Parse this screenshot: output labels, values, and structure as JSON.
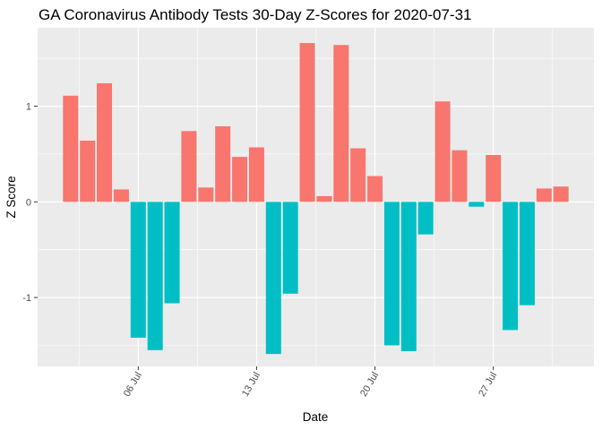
{
  "chart_data": {
    "type": "bar",
    "title": "GA Coronavirus Antibody Tests 30-Day Z-Scores for 2020-07-31",
    "xlabel": "Date",
    "ylabel": "Z Score",
    "ylim": [
      -1.72,
      1.82
    ],
    "x_tick_labels": [
      "06 Jul",
      "13 Jul",
      "20 Jul",
      "27 Jul"
    ],
    "y_tick_labels": [
      "-1",
      "0",
      "1"
    ],
    "grid": true,
    "legend": "none",
    "colors": {
      "positive": "#F8766D",
      "negative": "#00BFC4",
      "panel": "#EBEBEB",
      "grid": "#FFFFFF"
    },
    "categories": [
      "2020-07-02",
      "2020-07-03",
      "2020-07-04",
      "2020-07-05",
      "2020-07-06",
      "2020-07-07",
      "2020-07-08",
      "2020-07-09",
      "2020-07-10",
      "2020-07-11",
      "2020-07-12",
      "2020-07-13",
      "2020-07-14",
      "2020-07-15",
      "2020-07-16",
      "2020-07-17",
      "2020-07-18",
      "2020-07-19",
      "2020-07-20",
      "2020-07-21",
      "2020-07-22",
      "2020-07-23",
      "2020-07-24",
      "2020-07-25",
      "2020-07-26",
      "2020-07-27",
      "2020-07-28",
      "2020-07-29",
      "2020-07-30",
      "2020-07-31"
    ],
    "values": [
      1.11,
      0.64,
      1.24,
      0.13,
      -1.42,
      -1.55,
      -1.06,
      0.74,
      0.15,
      0.79,
      0.47,
      0.57,
      -1.59,
      -0.96,
      1.66,
      0.06,
      1.64,
      0.56,
      0.27,
      -1.5,
      -1.56,
      -0.34,
      1.05,
      0.54,
      -0.05,
      0.49,
      -1.34,
      -1.08,
      0.14,
      0.16
    ]
  }
}
